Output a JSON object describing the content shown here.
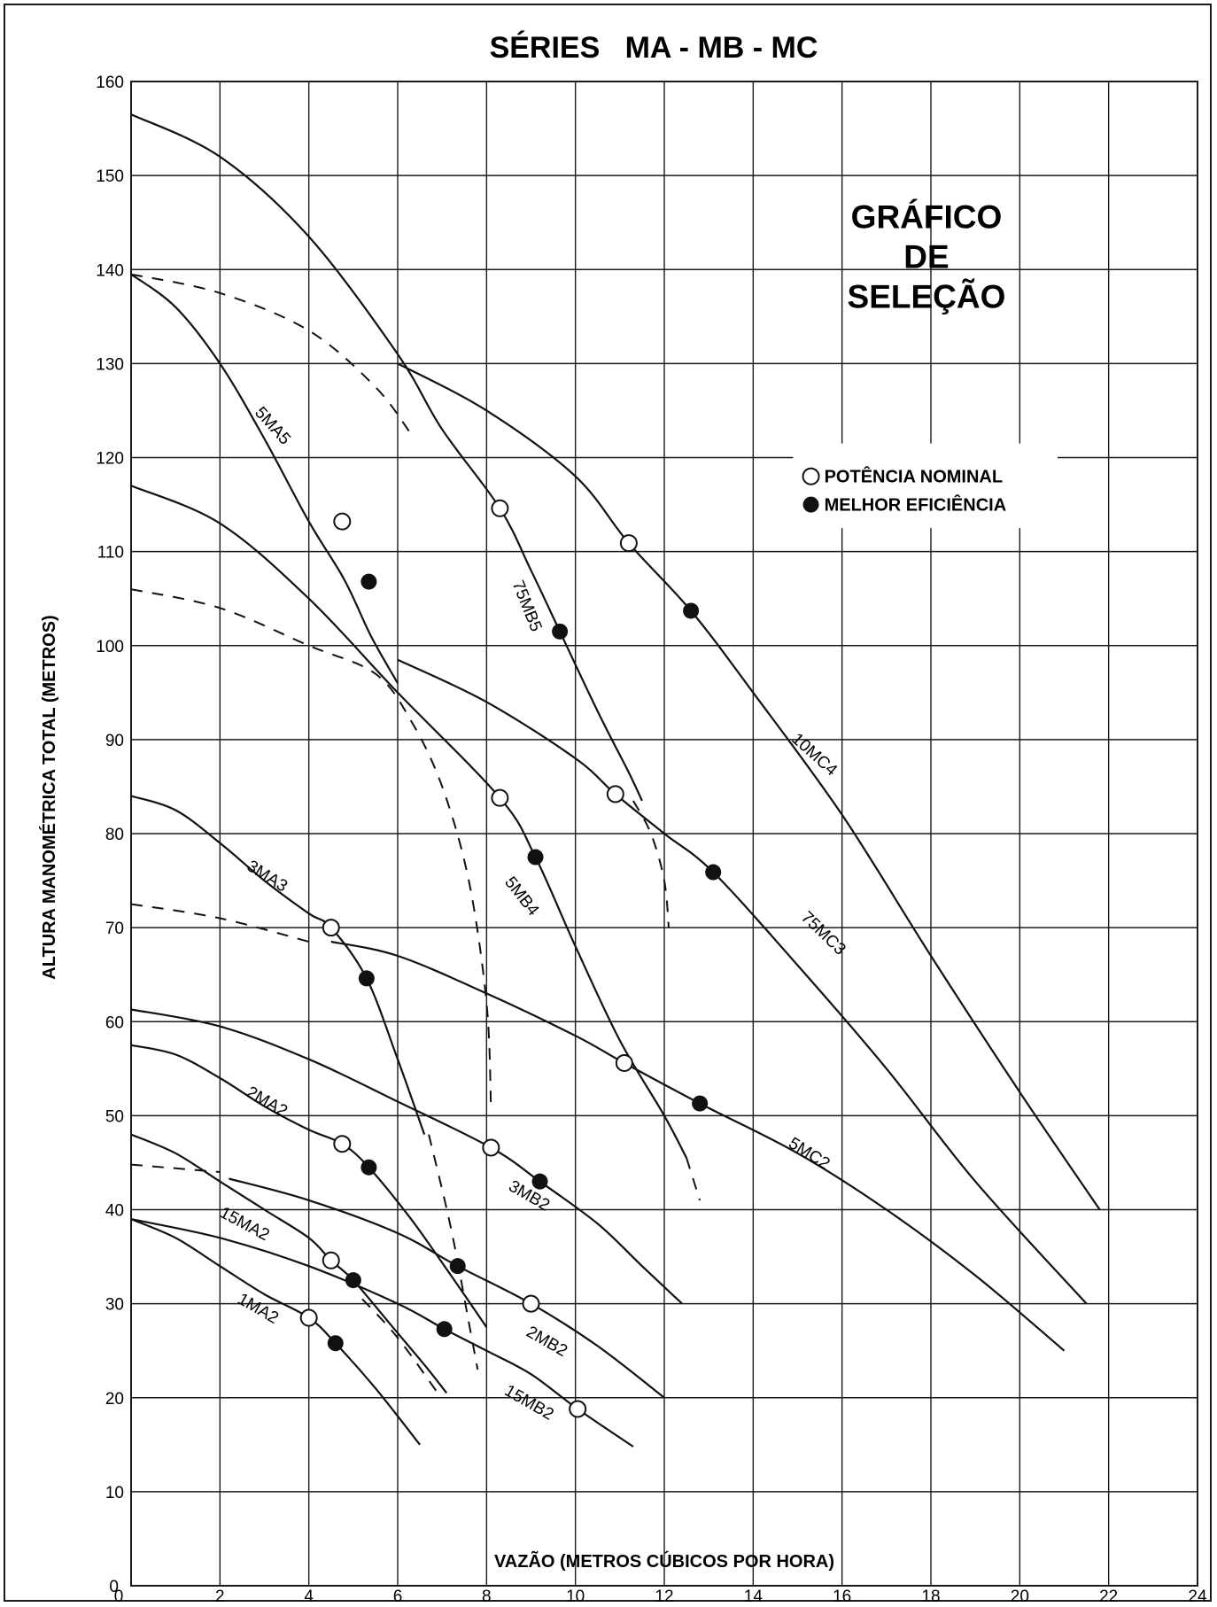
{
  "chart_data": {
    "type": "line",
    "title": "SÉRIES   MA - MB - MC",
    "xlabel": "VAZÃO (METROS CÚBICOS POR HORA)",
    "ylabel": "ALTURA MANOMÉTRICA TOTAL (METROS)",
    "xlim": [
      0,
      24
    ],
    "ylim": [
      0,
      160
    ],
    "x_ticks": [
      0,
      2,
      4,
      6,
      8,
      10,
      12,
      14,
      16,
      18,
      20,
      22,
      24
    ],
    "y_ticks": [
      10,
      20,
      30,
      40,
      50,
      60,
      70,
      80,
      90,
      100,
      110,
      120,
      130,
      140,
      150,
      160
    ],
    "grid": true,
    "panel_label": [
      "GRÁFICO",
      "DE",
      "SELEÇÃO"
    ],
    "legend": {
      "placement": "right",
      "entries": [
        {
          "label": "POTÊNCIA NOMINAL",
          "marker": "open-circle"
        },
        {
          "label": "MELHOR EFICIÊNCIA",
          "marker": "filled-circle"
        }
      ]
    },
    "series": [
      {
        "name": "5MA5",
        "label_at": [
          3.1,
          123
        ],
        "label_angle": 48,
        "points": [
          [
            0,
            139.5
          ],
          [
            1,
            136
          ],
          [
            2,
            130
          ],
          [
            3,
            122
          ],
          [
            4,
            113.2
          ],
          [
            4.8,
            107
          ],
          [
            5.4,
            101
          ],
          [
            6,
            96
          ]
        ],
        "nominal": [
          4.75,
          113.2
        ],
        "best": [
          5.35,
          106.8
        ]
      },
      {
        "name": "75MB5",
        "label_at": [
          8.8,
          104
        ],
        "label_angle": 68,
        "points": [
          [
            0,
            156.5
          ],
          [
            2,
            152
          ],
          [
            4,
            143.5
          ],
          [
            6,
            131
          ],
          [
            7,
            123
          ],
          [
            8.3,
            114.6
          ],
          [
            9,
            108
          ],
          [
            9.65,
            101.5
          ],
          [
            10.5,
            93
          ],
          [
            11.2,
            86.5
          ],
          [
            11.5,
            83.5
          ]
        ],
        "nominal": [
          8.3,
          114.6
        ],
        "best": [
          9.65,
          101.5
        ]
      },
      {
        "name": "10MC4",
        "label_at": [
          15.3,
          88
        ],
        "label_angle": 42,
        "points": [
          [
            6,
            130
          ],
          [
            8,
            125
          ],
          [
            10,
            118
          ],
          [
            11.2,
            110.9
          ],
          [
            12.6,
            103.7
          ],
          [
            14,
            95
          ],
          [
            16,
            82
          ],
          [
            18,
            67
          ],
          [
            20,
            52.5
          ],
          [
            21.8,
            40
          ]
        ],
        "nominal": [
          11.2,
          110.9
        ],
        "best": [
          12.6,
          103.7
        ]
      },
      {
        "name": "5MB4",
        "label_at": [
          8.7,
          73
        ],
        "label_angle": 52,
        "points": [
          [
            0,
            117
          ],
          [
            2,
            113
          ],
          [
            4,
            105
          ],
          [
            6,
            95
          ],
          [
            8.3,
            83.8
          ],
          [
            9.1,
            77.5
          ],
          [
            10,
            68
          ],
          [
            11,
            58
          ],
          [
            12,
            50
          ],
          [
            12.5,
            45.5
          ]
        ],
        "nominal": [
          8.3,
          83.8
        ],
        "best": [
          9.1,
          77.5
        ]
      },
      {
        "name": "75MC3",
        "label_at": [
          15.5,
          69
        ],
        "label_angle": 44,
        "points": [
          [
            6,
            98.5
          ],
          [
            8,
            94
          ],
          [
            10,
            88
          ],
          [
            10.9,
            84.2
          ],
          [
            12,
            80
          ],
          [
            13.1,
            75.9
          ],
          [
            15,
            66
          ],
          [
            17,
            55
          ],
          [
            19,
            43
          ],
          [
            21.5,
            30
          ]
        ],
        "nominal": [
          10.9,
          84.2
        ],
        "best": [
          13.1,
          75.9
        ]
      },
      {
        "name": "3MA3",
        "label_at": [
          3.0,
          75
        ],
        "label_angle": 32,
        "points": [
          [
            0,
            84
          ],
          [
            1,
            82.5
          ],
          [
            2,
            79
          ],
          [
            3,
            75
          ],
          [
            4,
            71.5
          ],
          [
            4.5,
            70
          ],
          [
            5.3,
            64.6
          ],
          [
            6,
            56
          ],
          [
            6.6,
            48
          ]
        ],
        "nominal": [
          4.5,
          70
        ],
        "best": [
          5.3,
          64.6
        ]
      },
      {
        "name": "5MC2",
        "label_at": [
          15.2,
          45.5
        ],
        "label_angle": 32,
        "points": [
          [
            4.5,
            68.5
          ],
          [
            6,
            67
          ],
          [
            8,
            63
          ],
          [
            10,
            58.5
          ],
          [
            11.1,
            55.6
          ],
          [
            12.8,
            51.3
          ],
          [
            15,
            46
          ],
          [
            17,
            40
          ],
          [
            19,
            33
          ],
          [
            21,
            25
          ]
        ],
        "nominal": [
          11.1,
          55.6
        ],
        "best": [
          12.8,
          51.3
        ]
      },
      {
        "name": "3MB2",
        "label_at": [
          8.9,
          41
        ],
        "label_angle": 30,
        "points": [
          [
            0,
            61.3
          ],
          [
            2,
            59.5
          ],
          [
            4,
            56
          ],
          [
            6,
            51.5
          ],
          [
            8.1,
            46.6
          ],
          [
            9.2,
            43
          ],
          [
            10.5,
            38.5
          ],
          [
            11.5,
            34
          ],
          [
            12.4,
            30
          ]
        ],
        "nominal": [
          8.1,
          46.6
        ],
        "best": [
          9.2,
          43
        ]
      },
      {
        "name": "2MA2",
        "label_at": [
          3.0,
          51
        ],
        "label_angle": 30,
        "points": [
          [
            0,
            57.5
          ],
          [
            1,
            56.5
          ],
          [
            2,
            54
          ],
          [
            3,
            51
          ],
          [
            4,
            48.5
          ],
          [
            4.75,
            47
          ],
          [
            5.35,
            44.5
          ],
          [
            6.3,
            39
          ],
          [
            7.2,
            33
          ],
          [
            8,
            27.5
          ]
        ],
        "nominal": [
          4.75,
          47
        ],
        "best": [
          5.35,
          44.5
        ]
      },
      {
        "name": "2MB2",
        "label_at": [
          9.3,
          25.5
        ],
        "label_angle": 30,
        "points": [
          [
            2.2,
            43.3
          ],
          [
            4,
            41
          ],
          [
            6,
            37.5
          ],
          [
            7.35,
            34
          ],
          [
            9,
            30
          ],
          [
            10.5,
            25.5
          ],
          [
            12,
            20
          ]
        ],
        "nominal": [
          9,
          30
        ],
        "best": [
          7.35,
          34
        ]
      },
      {
        "name": "15MA2",
        "label_at": [
          2.5,
          38
        ],
        "label_angle": 28,
        "points": [
          [
            0,
            48
          ],
          [
            1,
            46
          ],
          [
            2,
            43
          ],
          [
            3,
            40
          ],
          [
            4,
            37
          ],
          [
            4.5,
            34.6
          ],
          [
            5,
            32.5
          ],
          [
            5.8,
            28
          ],
          [
            6.6,
            23.5
          ],
          [
            7.1,
            20.5
          ]
        ],
        "nominal": [
          4.5,
          34.6
        ],
        "best": [
          5,
          32.5
        ]
      },
      {
        "name": "15MB2",
        "label_at": [
          8.9,
          19
        ],
        "label_angle": 30,
        "points": [
          [
            0,
            39
          ],
          [
            2,
            37
          ],
          [
            4,
            34
          ],
          [
            6,
            30
          ],
          [
            7.05,
            27.3
          ],
          [
            8,
            25
          ],
          [
            9,
            22.5
          ],
          [
            10.05,
            18.8
          ],
          [
            11.3,
            14.8
          ]
        ],
        "nominal": [
          10.05,
          18.8
        ],
        "best": [
          7.05,
          27.3
        ]
      },
      {
        "name": "1MA2",
        "label_at": [
          2.8,
          29
        ],
        "label_angle": 30,
        "points": [
          [
            0,
            39
          ],
          [
            1,
            37
          ],
          [
            2,
            34
          ],
          [
            3,
            31
          ],
          [
            4,
            28.5
          ],
          [
            4.6,
            25.8
          ],
          [
            5.5,
            21
          ],
          [
            6.5,
            15
          ]
        ],
        "nominal": [
          4,
          28.5
        ],
        "best": [
          4.6,
          25.8
        ]
      }
    ],
    "dashed_lines": [
      {
        "points": [
          [
            0,
            139.5
          ],
          [
            2,
            137.5
          ],
          [
            4,
            133.5
          ],
          [
            5.5,
            127.5
          ],
          [
            6.3,
            122.5
          ]
        ]
      },
      {
        "points": [
          [
            0,
            106
          ],
          [
            2,
            104
          ],
          [
            4,
            100
          ],
          [
            5.5,
            97
          ],
          [
            6.3,
            92
          ],
          [
            7,
            85
          ],
          [
            7.6,
            75
          ],
          [
            8,
            62
          ],
          [
            8.1,
            51
          ]
        ]
      },
      {
        "points": [
          [
            0,
            72.5
          ],
          [
            2,
            71
          ],
          [
            4,
            68.5
          ]
        ]
      },
      {
        "points": [
          [
            0,
            44.8
          ],
          [
            2,
            44
          ]
        ]
      },
      {
        "points": [
          [
            5.2,
            30.5
          ],
          [
            5.8,
            27.5
          ],
          [
            6.3,
            24.5
          ],
          [
            6.9,
            20.5
          ]
        ]
      },
      {
        "points": [
          [
            6.7,
            48
          ],
          [
            7.2,
            38
          ],
          [
            7.6,
            28
          ],
          [
            7.8,
            23
          ]
        ]
      },
      {
        "points": [
          [
            11.3,
            83.5
          ],
          [
            11.7,
            80
          ],
          [
            12,
            75
          ],
          [
            12.1,
            70
          ]
        ]
      },
      {
        "points": [
          [
            12.5,
            45.5
          ],
          [
            12.8,
            41
          ]
        ]
      }
    ]
  }
}
